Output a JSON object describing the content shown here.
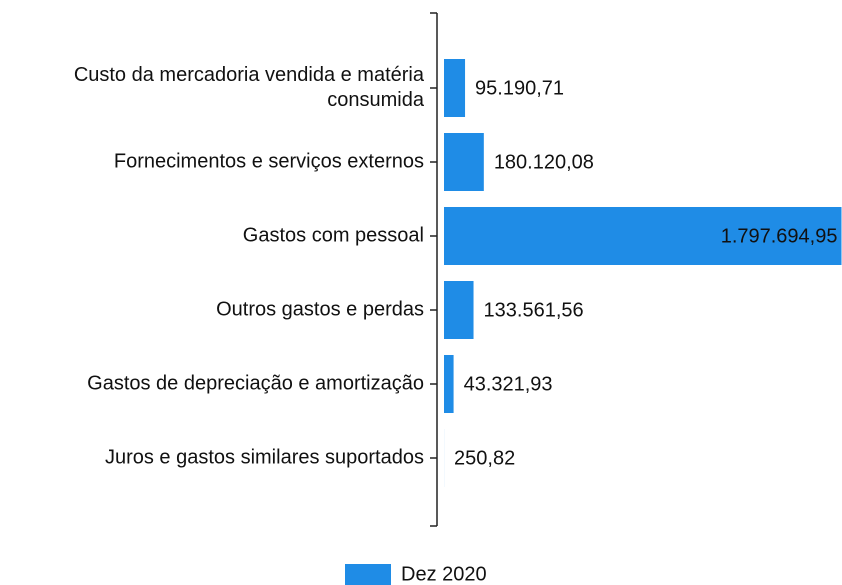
{
  "chart_data": {
    "type": "barh",
    "categories": [
      "Custo da mercadoria vendida e matéria consumida",
      "Fornecimentos e serviços externos",
      "Gastos com pessoal",
      "Outros gastos e perdas",
      "Gastos de depreciação e amortização",
      "Juros e gastos similares suportados"
    ],
    "series": [
      {
        "name": "Dez 2020",
        "color": "#1f8ce6",
        "values": [
          95190.71,
          180120.08,
          1797694.95,
          133561.56,
          43321.93,
          250.82
        ],
        "value_labels": [
          "95.190,71",
          "180.120,08",
          "1.797.694,95",
          "133.561,56",
          "43.321,93",
          "250,82"
        ]
      }
    ],
    "xlim": [
      0,
      1800000
    ],
    "legend": "bottom"
  }
}
